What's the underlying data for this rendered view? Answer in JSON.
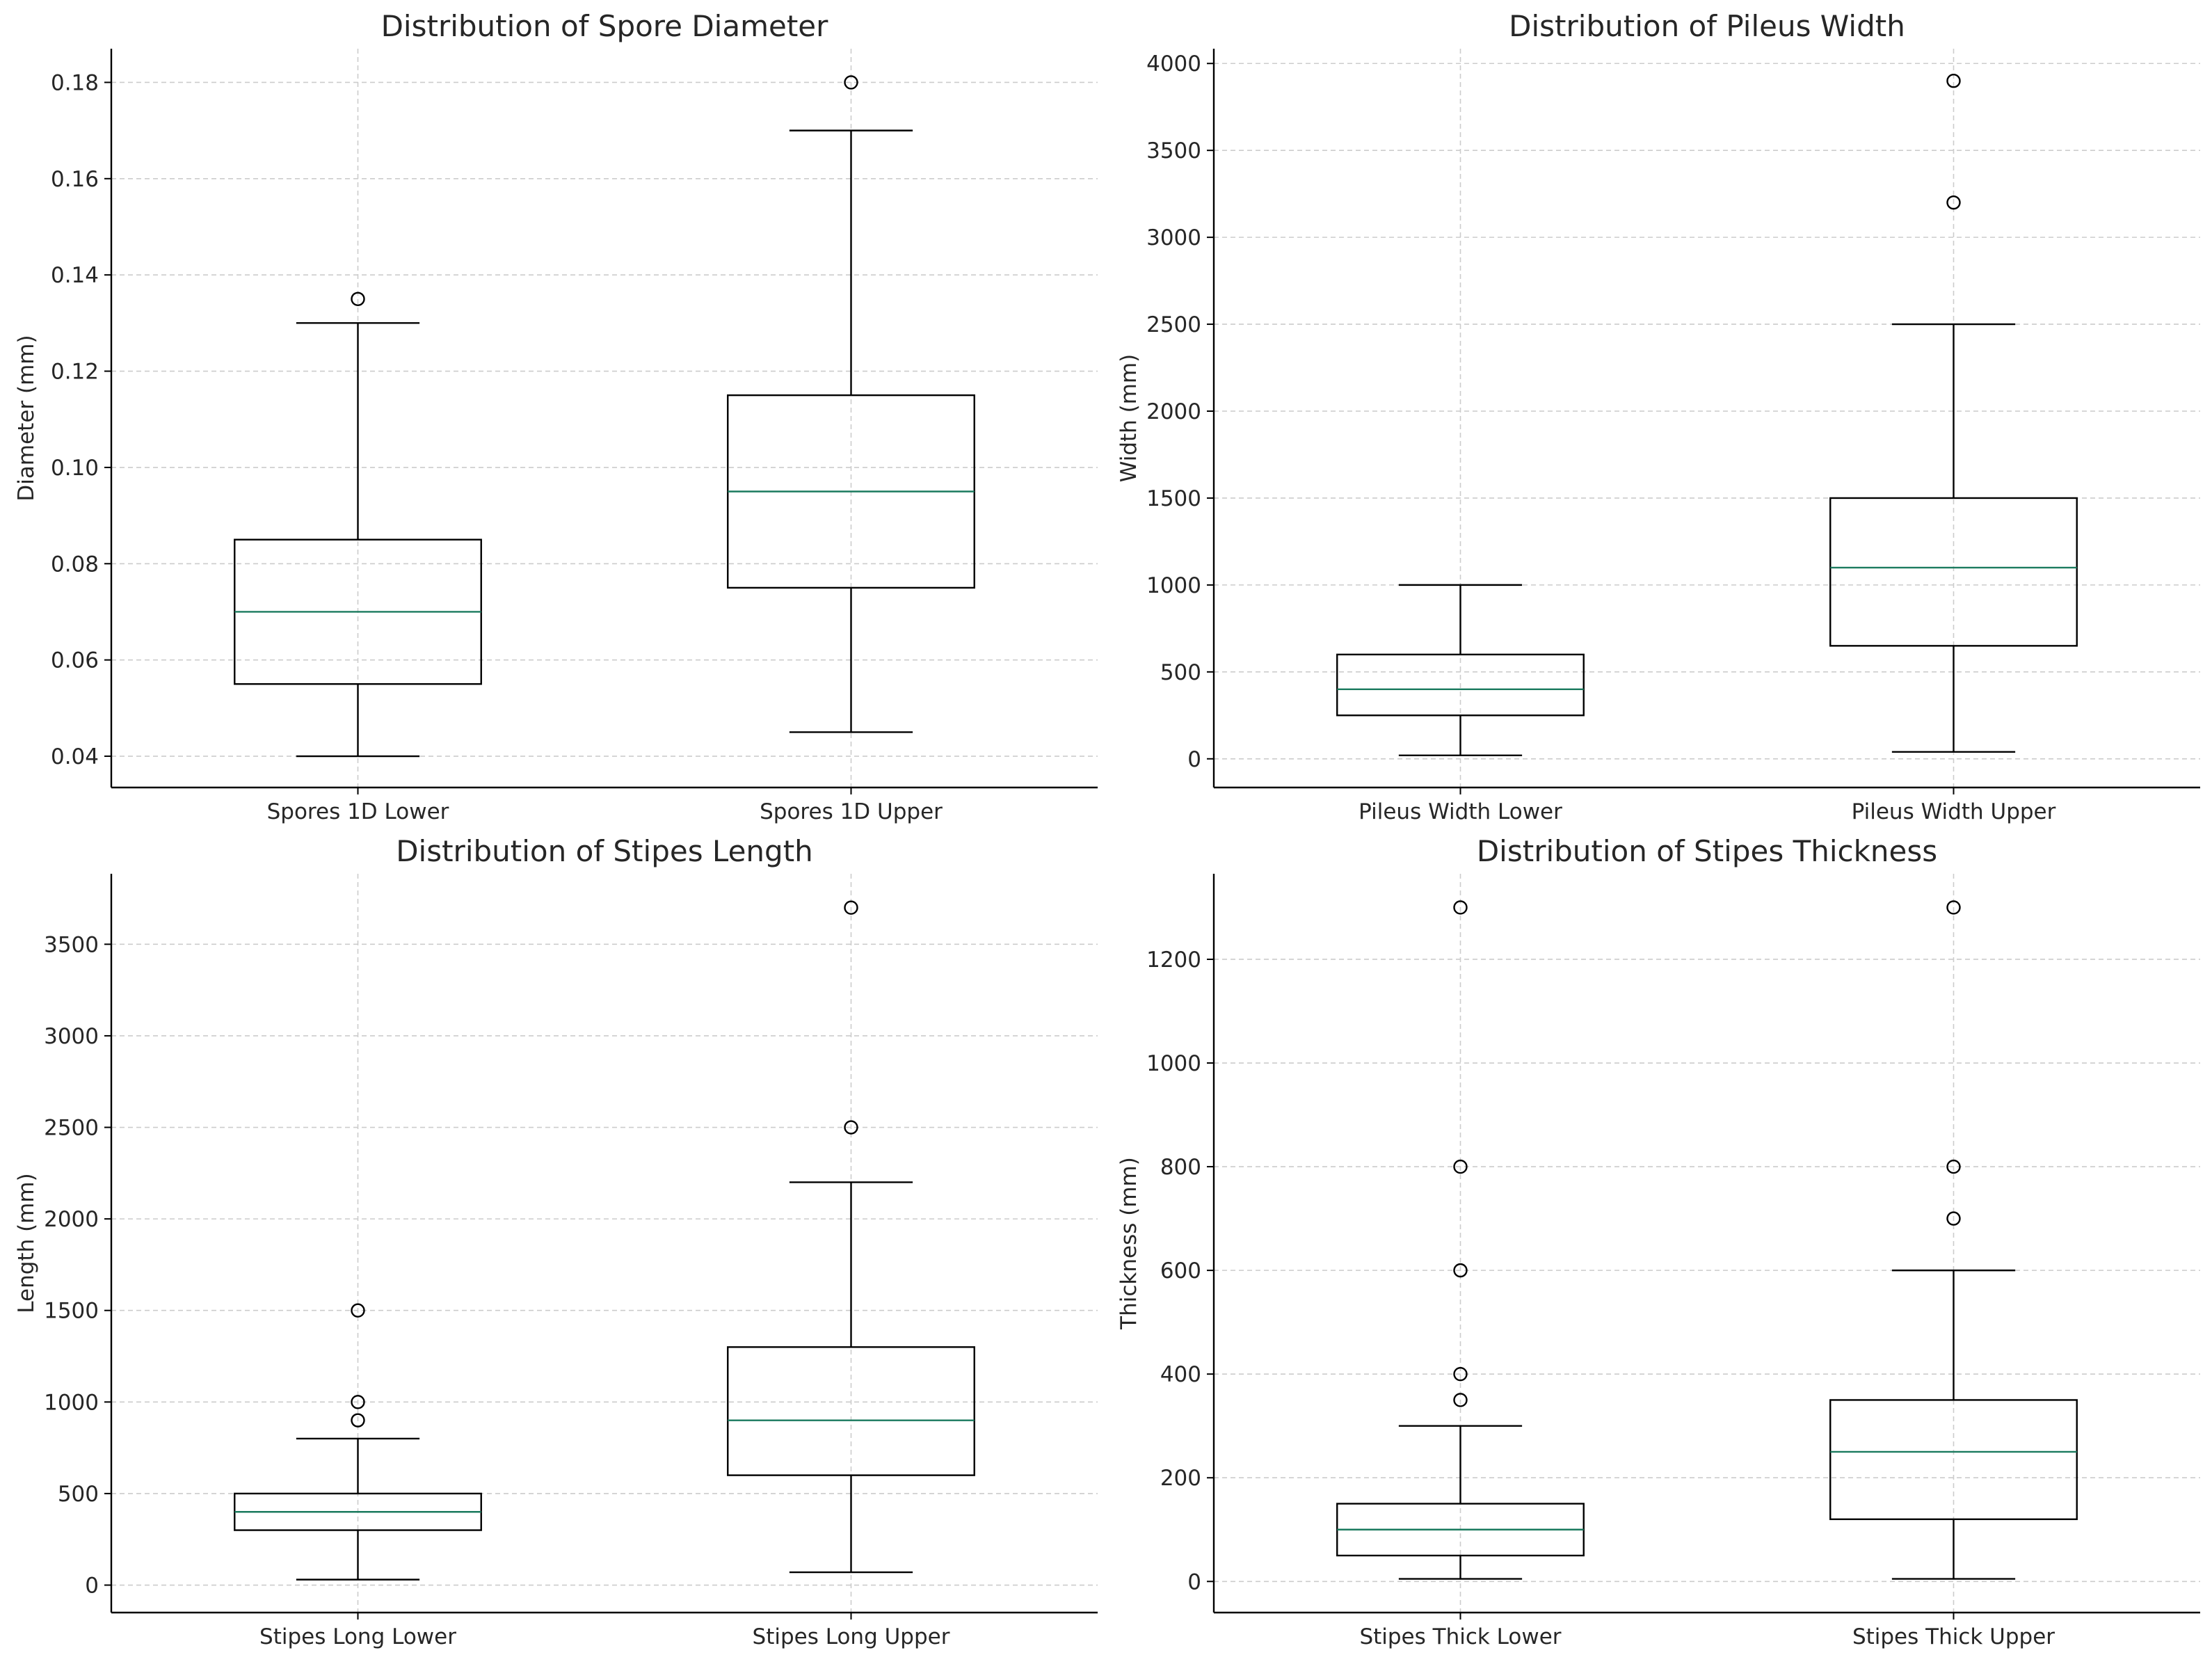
{
  "chart_data": [
    {
      "type": "box",
      "title": "Distribution of Spore Diameter",
      "xlabel": "",
      "ylabel": "Diameter (mm)",
      "ylim": [
        0.0335,
        0.187
      ],
      "yticks": [
        0.04,
        0.06,
        0.08,
        0.1,
        0.12,
        0.14,
        0.16,
        0.18
      ],
      "ytick_labels": [
        "0.04",
        "0.06",
        "0.08",
        "0.10",
        "0.12",
        "0.14",
        "0.16",
        "0.18"
      ],
      "grid": true,
      "categories": [
        "Spores 1D Lower",
        "Spores 1D Upper"
      ],
      "boxes": [
        {
          "whisker_low": 0.04,
          "q1": 0.055,
          "median": 0.07,
          "q3": 0.085,
          "whisker_high": 0.13,
          "outliers": [
            0.135
          ]
        },
        {
          "whisker_low": 0.045,
          "q1": 0.075,
          "median": 0.095,
          "q3": 0.115,
          "whisker_high": 0.17,
          "outliers": [
            0.18
          ]
        }
      ]
    },
    {
      "type": "box",
      "title": "Distribution of Pileus Width",
      "xlabel": "",
      "ylabel": "Width (mm)",
      "ylim": [
        -165,
        4085
      ],
      "yticks": [
        0,
        500,
        1000,
        1500,
        2000,
        2500,
        3000,
        3500,
        4000
      ],
      "ytick_labels": [
        "0",
        "500",
        "1000",
        "1500",
        "2000",
        "2500",
        "3000",
        "3500",
        "4000"
      ],
      "grid": true,
      "categories": [
        "Pileus Width Lower",
        "Pileus Width Upper"
      ],
      "boxes": [
        {
          "whisker_low": 20,
          "q1": 250,
          "median": 400,
          "q3": 600,
          "whisker_high": 1000,
          "outliers": []
        },
        {
          "whisker_low": 40,
          "q1": 650,
          "median": 1100,
          "q3": 1500,
          "whisker_high": 2500,
          "outliers": [
            3200,
            3900
          ]
        }
      ]
    },
    {
      "type": "box",
      "title": "Distribution of Stipes Length",
      "xlabel": "",
      "ylabel": "Length (mm)",
      "ylim": [
        -150,
        3885
      ],
      "yticks": [
        0,
        500,
        1000,
        1500,
        2000,
        2500,
        3000,
        3500
      ],
      "ytick_labels": [
        "0",
        "500",
        "1000",
        "1500",
        "2000",
        "2500",
        "3000",
        "3500"
      ],
      "grid": true,
      "categories": [
        "Stipes Long Lower",
        "Stipes Long Upper"
      ],
      "boxes": [
        {
          "whisker_low": 30,
          "q1": 300,
          "median": 400,
          "q3": 500,
          "whisker_high": 800,
          "outliers": [
            900,
            1000,
            1500
          ]
        },
        {
          "whisker_low": 70,
          "q1": 600,
          "median": 900,
          "q3": 1300,
          "whisker_high": 2200,
          "outliers": [
            2500,
            3700
          ]
        }
      ]
    },
    {
      "type": "box",
      "title": "Distribution of Stipes Thickness",
      "xlabel": "",
      "ylabel": "Thickness (mm)",
      "ylim": [
        -60,
        1365
      ],
      "yticks": [
        0,
        200,
        400,
        600,
        800,
        1000,
        1200
      ],
      "ytick_labels": [
        "0",
        "200",
        "400",
        "600",
        "800",
        "1000",
        "1200"
      ],
      "grid": true,
      "categories": [
        "Stipes Thick Lower",
        "Stipes Thick Upper"
      ],
      "boxes": [
        {
          "whisker_low": 5,
          "q1": 50,
          "median": 100,
          "q3": 150,
          "whisker_high": 300,
          "outliers": [
            350,
            400,
            600,
            800,
            1300
          ]
        },
        {
          "whisker_low": 5,
          "q1": 120,
          "median": 250,
          "q3": 350,
          "whisker_high": 600,
          "outliers": [
            700,
            800,
            1300
          ]
        }
      ]
    }
  ],
  "colors": {
    "box_edge": "#000000",
    "median": "#1a7a5e",
    "grid": "#cccccc",
    "axis": "#000000",
    "text": "#262626"
  }
}
